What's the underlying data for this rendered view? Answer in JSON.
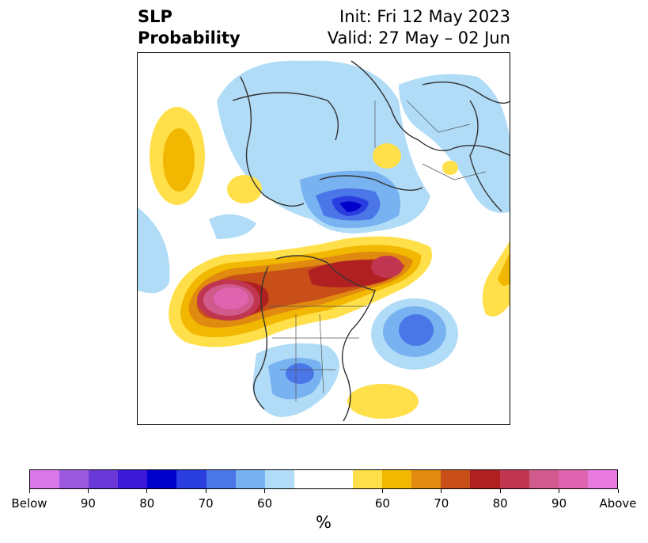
{
  "title": {
    "left_line1": "SLP",
    "left_line2": "Probability",
    "right_line1": "Init: Fri 12 May 2023",
    "right_line2": "Valid: 27 May – 02 Jun"
  },
  "colorbar": {
    "colors": [
      "#d878e8",
      "#9b59e0",
      "#6b38d8",
      "#3a1ad8",
      "#0000cc",
      "#2a3ee0",
      "#4a76e8",
      "#78b2f0",
      "#b0dcf8",
      "#ffffff",
      "#ffffff",
      "#ffe04a",
      "#f2b700",
      "#e08a10",
      "#c85018",
      "#b02020",
      "#c03650",
      "#d05a8c",
      "#de64b0",
      "#e87ae0"
    ],
    "labels": [
      "Below",
      "90",
      "80",
      "70",
      "60",
      "60",
      "70",
      "80",
      "90",
      "Above"
    ],
    "unit": "%"
  },
  "palette": {
    "lightblue": "#b0dcf8",
    "skyblue": "#78b2f0",
    "midblue": "#4a76e8",
    "blue": "#2a3ee0",
    "yellow": "#ffe04a",
    "gold": "#f2b700",
    "orange": "#e08a10",
    "darkorange": "#c85018",
    "red": "#b02020",
    "crimson": "#c03650",
    "pink": "#d05a8c",
    "magenta": "#de64b0"
  }
}
